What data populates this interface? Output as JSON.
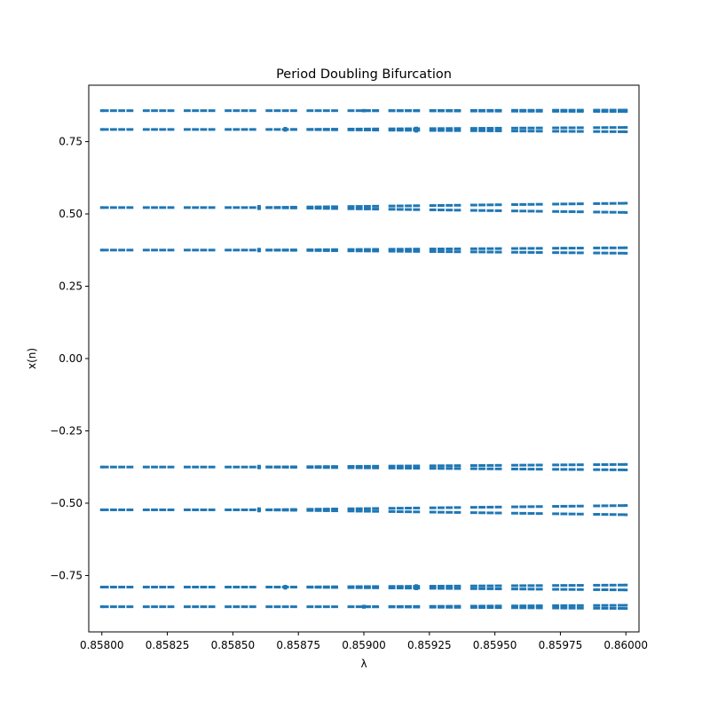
{
  "chart_data": {
    "type": "scatter",
    "title": "Period Doubling Bifurcation",
    "xlabel": "λ",
    "ylabel": "x(n)",
    "xlim": [
      0.85795,
      0.86005
    ],
    "ylim": [
      -0.945,
      0.945
    ],
    "grid": false,
    "legend": "none",
    "marker_color": "#1f77b4",
    "x_ticks": [
      {
        "value": 0.858,
        "label": "0.85800"
      },
      {
        "value": 0.85825,
        "label": "0.85825"
      },
      {
        "value": 0.8585,
        "label": "0.85850"
      },
      {
        "value": 0.85875,
        "label": "0.85875"
      },
      {
        "value": 0.859,
        "label": "0.85900"
      },
      {
        "value": 0.85925,
        "label": "0.85925"
      },
      {
        "value": 0.8595,
        "label": "0.85950"
      },
      {
        "value": 0.85975,
        "label": "0.85975"
      },
      {
        "value": 0.86,
        "label": "0.86000"
      }
    ],
    "y_ticks": [
      {
        "value": 0.75,
        "label": "0.75"
      },
      {
        "value": 0.5,
        "label": "0.50"
      },
      {
        "value": 0.25,
        "label": "0.25"
      },
      {
        "value": 0.0,
        "label": "0.00"
      },
      {
        "value": -0.25,
        "label": "−0.25"
      },
      {
        "value": -0.5,
        "label": "−0.50"
      },
      {
        "value": -0.75,
        "label": "−0.75"
      }
    ],
    "x_range": [
      0.858,
      0.86
    ],
    "series": [
      {
        "id": "b1",
        "values": [
          [
            0.858,
            0.857
          ],
          [
            0.859,
            0.857
          ],
          [
            0.859,
            0.858
          ],
          [
            0.859,
            0.856
          ],
          [
            0.86,
            0.859
          ],
          [
            0.86,
            0.854
          ]
        ]
      },
      {
        "id": "b2",
        "values": [
          [
            0.858,
            0.792
          ],
          [
            0.8587,
            0.792
          ],
          [
            0.8587,
            0.796
          ],
          [
            0.8587,
            0.789
          ],
          [
            0.8592,
            0.797
          ],
          [
            0.8592,
            0.786
          ],
          [
            0.86,
            0.799
          ],
          [
            0.86,
            0.784
          ]
        ]
      },
      {
        "id": "b3",
        "values": [
          [
            0.858,
            0.522
          ],
          [
            0.8586,
            0.522
          ],
          [
            0.8586,
            0.526
          ],
          [
            0.8586,
            0.518
          ],
          [
            0.86,
            0.537
          ],
          [
            0.86,
            0.505
          ]
        ]
      },
      {
        "id": "b4",
        "values": [
          [
            0.858,
            0.375
          ],
          [
            0.8586,
            0.375
          ],
          [
            0.8586,
            0.378
          ],
          [
            0.8586,
            0.372
          ],
          [
            0.86,
            0.383
          ],
          [
            0.86,
            0.364
          ]
        ]
      },
      {
        "id": "b5",
        "values": [
          [
            0.858,
            -0.375
          ],
          [
            0.8586,
            -0.375
          ],
          [
            0.8586,
            -0.372
          ],
          [
            0.8586,
            -0.378
          ],
          [
            0.86,
            -0.366
          ],
          [
            0.86,
            -0.385
          ]
        ]
      },
      {
        "id": "b6",
        "values": [
          [
            0.858,
            -0.523
          ],
          [
            0.8586,
            -0.523
          ],
          [
            0.8586,
            -0.519
          ],
          [
            0.8586,
            -0.527
          ],
          [
            0.86,
            -0.508
          ],
          [
            0.86,
            -0.54
          ]
        ]
      },
      {
        "id": "b7",
        "values": [
          [
            0.858,
            -0.79
          ],
          [
            0.8587,
            -0.79
          ],
          [
            0.8587,
            -0.787
          ],
          [
            0.8587,
            -0.794
          ],
          [
            0.8592,
            -0.785
          ],
          [
            0.8592,
            -0.796
          ],
          [
            0.86,
            -0.783
          ],
          [
            0.86,
            -0.8
          ]
        ]
      },
      {
        "id": "b8",
        "values": [
          [
            0.858,
            -0.858
          ],
          [
            0.859,
            -0.858
          ],
          [
            0.859,
            -0.856
          ],
          [
            0.859,
            -0.86
          ],
          [
            0.86,
            -0.853
          ],
          [
            0.86,
            -0.864
          ]
        ]
      }
    ]
  }
}
